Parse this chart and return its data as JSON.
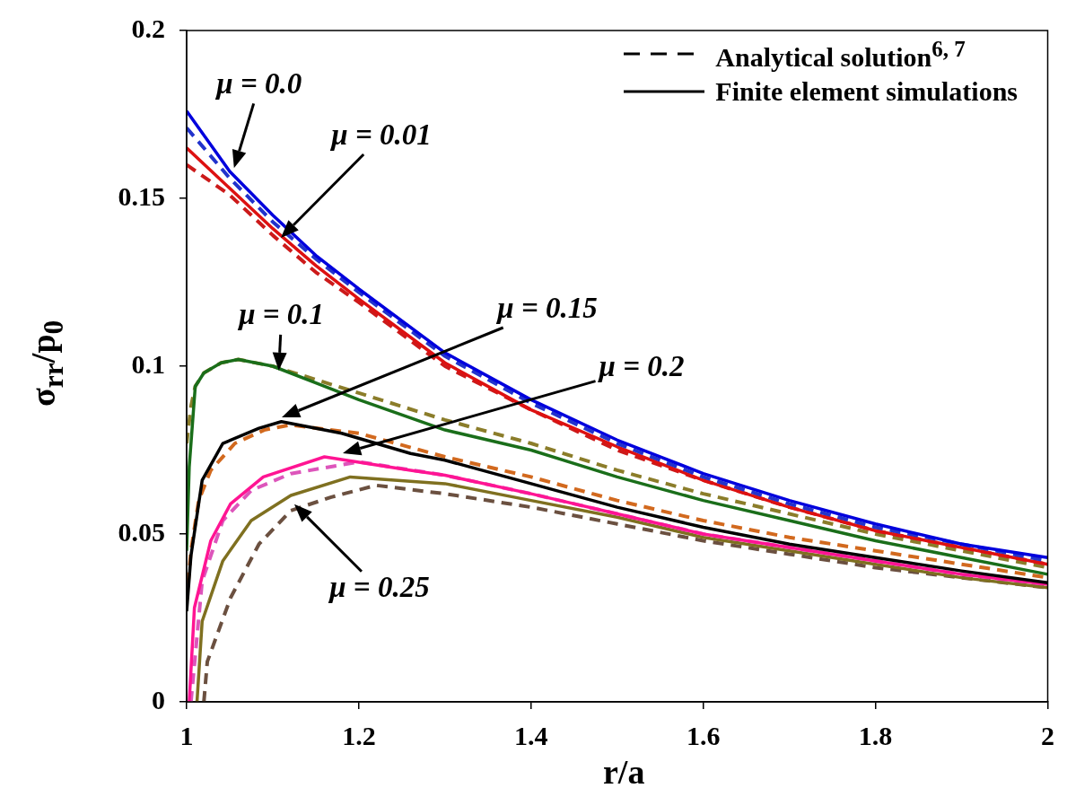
{
  "chart_data": {
    "type": "line",
    "xlabel": "r/a",
    "ylabel": "σ$_{rr}$/p$_{0}$",
    "xlim": [
      1,
      2
    ],
    "xticks": [
      1,
      1.2,
      1.4,
      1.6,
      1.8,
      2
    ],
    "ylim": [
      0,
      0.2
    ],
    "yticks": [
      0,
      0.05,
      0.1,
      0.15,
      0.2
    ],
    "grid": false,
    "legend": false,
    "marker": "none",
    "annotations": [
      "Analytical solution$^{6, 7}$",
      "Finite element simulations",
      {
        "text": "μ = 0.0",
        "x": 1.055,
        "y": 0.159
      },
      "μ = 0.01",
      {
        "text": "μ = 0.1",
        "x": 1.107,
        "y": 0.0987
      },
      "μ = 0.15",
      "μ = 0.2",
      {
        "text": "μ = 0.25",
        "x": 1.125,
        "y": 0.0589
      }
    ],
    "series": [
      {
        "color": "#0000dd",
        "line_style": "solid",
        "x": [
          1,
          1.05,
          1.1,
          1.15,
          1.2,
          1.3,
          1.4,
          1.5,
          1.6,
          1.7,
          1.8,
          1.9,
          2
        ],
        "values": [
          0.176,
          0.158,
          0.145,
          0.133,
          0.123,
          0.104,
          0.09,
          0.078,
          0.068,
          0.06,
          0.053,
          0.047,
          0.043
        ]
      },
      {
        "color": "#2233cc",
        "line_style": "dashed",
        "x": [
          1,
          1.05,
          1.1,
          1.15,
          1.2,
          1.3,
          1.4,
          1.5,
          1.6,
          1.7,
          1.8,
          1.9,
          2
        ],
        "values": [
          0.171,
          0.156,
          0.143,
          0.132,
          0.122,
          0.103,
          0.089,
          0.077,
          0.067,
          0.059,
          0.052,
          0.047,
          0.042
        ]
      },
      {
        "color": "#dd1111",
        "line_style": "solid",
        "x": [
          1,
          1.05,
          1.1,
          1.15,
          1.2,
          1.3,
          1.4,
          1.5,
          1.6,
          1.7,
          1.8,
          1.9,
          2
        ],
        "values": [
          0.165,
          0.153,
          0.141,
          0.13,
          0.12,
          0.101,
          0.087,
          0.076,
          0.066,
          0.058,
          0.051,
          0.046,
          0.041
        ]
      },
      {
        "color": "#cc1a1a",
        "line_style": "dashed",
        "x": [
          1,
          1.05,
          1.1,
          1.15,
          1.2,
          1.3,
          1.4,
          1.5,
          1.6,
          1.7,
          1.8,
          1.9,
          2
        ],
        "values": [
          0.16,
          0.151,
          0.139,
          0.128,
          0.119,
          0.1,
          0.087,
          0.075,
          0.066,
          0.058,
          0.051,
          0.046,
          0.041
        ]
      },
      {
        "color": "#1a6e1a",
        "line_style": "solid",
        "x": [
          1,
          1.003,
          1.01,
          1.02,
          1.04,
          1.06,
          1.1,
          1.15,
          1.2,
          1.3,
          1.4,
          1.5,
          1.6,
          1.7,
          1.8,
          1.9,
          2
        ],
        "values": [
          0.045,
          0.07,
          0.094,
          0.098,
          0.101,
          0.102,
          0.1,
          0.095,
          0.09,
          0.081,
          0.075,
          0.067,
          0.06,
          0.054,
          0.048,
          0.043,
          0.038
        ]
      },
      {
        "color": "#8b7d2a",
        "line_style": "dashed",
        "x": [
          1,
          1.005,
          1.01,
          1.02,
          1.04,
          1.06,
          1.1,
          1.15,
          1.2,
          1.3,
          1.4,
          1.5,
          1.6,
          1.7,
          1.8,
          1.9,
          2
        ],
        "values": [
          0.077,
          0.088,
          0.094,
          0.098,
          0.101,
          0.102,
          0.1,
          0.096,
          0.092,
          0.084,
          0.077,
          0.069,
          0.062,
          0.056,
          0.05,
          0.045,
          0.04
        ]
      },
      {
        "color": "#000000",
        "line_style": "solid",
        "x": [
          1,
          1.005,
          1.018,
          1.042,
          1.084,
          1.11,
          1.18,
          1.26,
          1.3,
          1.4,
          1.5,
          1.6,
          1.7,
          1.8,
          1.9,
          2
        ],
        "values": [
          0.027,
          0.0435,
          0.066,
          0.077,
          0.0815,
          0.0835,
          0.08,
          0.074,
          0.072,
          0.065,
          0.058,
          0.052,
          0.047,
          0.043,
          0.039,
          0.0355
        ]
      },
      {
        "color": "#d2691e",
        "line_style": "dashed",
        "x": [
          1,
          1.005,
          1.014,
          1.028,
          1.056,
          1.09,
          1.12,
          1.2,
          1.3,
          1.4,
          1.5,
          1.6,
          1.7,
          1.8,
          1.9,
          2
        ],
        "values": [
          0.03,
          0.045,
          0.06,
          0.069,
          0.077,
          0.081,
          0.0825,
          0.08,
          0.073,
          0.067,
          0.06,
          0.054,
          0.049,
          0.045,
          0.041,
          0.037
        ]
      },
      {
        "color": "#ff1493",
        "line_style": "solid",
        "x": [
          1.003,
          1.009,
          1.028,
          1.051,
          1.089,
          1.16,
          1.26,
          1.3,
          1.4,
          1.5,
          1.6,
          1.7,
          1.8,
          1.9,
          2
        ],
        "values": [
          0,
          0.028,
          0.048,
          0.059,
          0.067,
          0.073,
          0.069,
          0.0675,
          0.062,
          0.056,
          0.05,
          0.046,
          0.042,
          0.038,
          0.035
        ]
      },
      {
        "color": "#dd55bb",
        "line_style": "dashed",
        "x": [
          1.005,
          1.018,
          1.042,
          1.075,
          1.121,
          1.2,
          1.3,
          1.4,
          1.5,
          1.6,
          1.7,
          1.8,
          1.9,
          2
        ],
        "values": [
          0,
          0.036,
          0.054,
          0.063,
          0.068,
          0.0715,
          0.0675,
          0.062,
          0.056,
          0.05,
          0.046,
          0.042,
          0.038,
          0.035
        ]
      },
      {
        "color": "#7f7020",
        "line_style": "solid",
        "x": [
          1.012,
          1.018,
          1.042,
          1.075,
          1.121,
          1.19,
          1.3,
          1.4,
          1.5,
          1.6,
          1.7,
          1.8,
          1.9,
          2
        ],
        "values": [
          0,
          0.024,
          0.042,
          0.054,
          0.0615,
          0.067,
          0.065,
          0.06,
          0.055,
          0.049,
          0.045,
          0.041,
          0.037,
          0.034
        ]
      },
      {
        "color": "#6b5040",
        "line_style": "dashed",
        "x": [
          1.02,
          1.024,
          1.051,
          1.084,
          1.121,
          1.168,
          1.22,
          1.3,
          1.4,
          1.5,
          1.6,
          1.7,
          1.8,
          1.9,
          2
        ],
        "values": [
          0,
          0.012,
          0.031,
          0.047,
          0.057,
          0.061,
          0.0645,
          0.062,
          0.058,
          0.053,
          0.048,
          0.044,
          0.04,
          0.037,
          0.034
        ]
      }
    ]
  }
}
